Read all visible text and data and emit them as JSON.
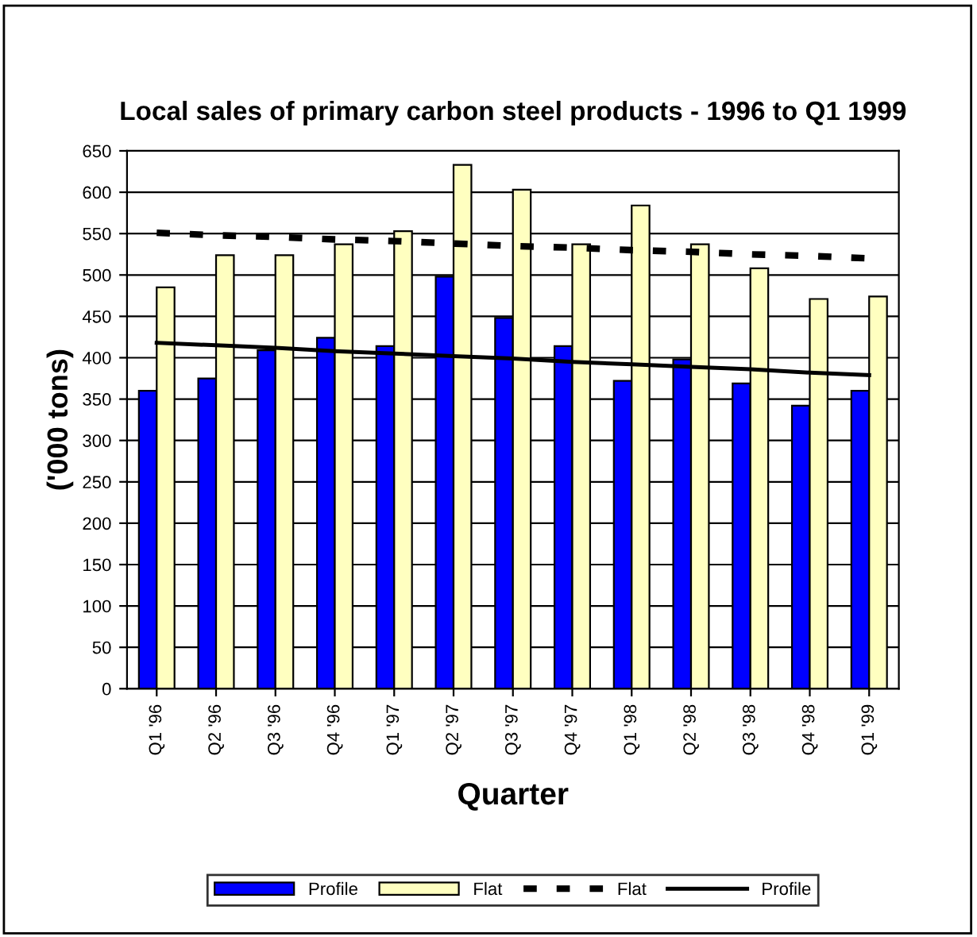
{
  "chart_data": {
    "type": "bar",
    "title": "Local sales of primary carbon steel products - 1996 to Q1 1999",
    "xlabel": "Quarter",
    "ylabel": "('000 tons)",
    "categories": [
      "Q1 '96",
      "Q2 '96",
      "Q3 '96",
      "Q4 '96",
      "Q1 '97",
      "Q2 '97",
      "Q3 '97",
      "Q4 '97",
      "Q1 '98",
      "Q2 '98",
      "Q3 '98",
      "Q4 '98",
      "Q1 '99"
    ],
    "series": [
      {
        "name": "Profile",
        "color": "#0000ff",
        "values": [
          360,
          375,
          409,
          424,
          414,
          498,
          448,
          414,
          372,
          398,
          369,
          342,
          360
        ]
      },
      {
        "name": "Flat",
        "color": "#ffffc0",
        "values": [
          485,
          524,
          524,
          537,
          553,
          633,
          603,
          537,
          584,
          537,
          508,
          471,
          474
        ]
      },
      {
        "name": "Flat",
        "type": "line",
        "color": "#000000",
        "line_style": "dashed",
        "values": [
          551,
          548,
          546,
          543,
          541,
          538,
          535,
          533,
          530,
          528,
          525,
          523,
          520
        ]
      },
      {
        "name": "Profile",
        "type": "line",
        "color": "#000000",
        "line_style": "solid",
        "values": [
          418,
          415,
          412,
          408,
          405,
          402,
          399,
          395,
          392,
          389,
          386,
          382,
          379
        ]
      }
    ],
    "ylim": [
      0,
      650
    ],
    "yticks": [
      0,
      50,
      100,
      150,
      200,
      250,
      300,
      350,
      400,
      450,
      500,
      550,
      600,
      650
    ],
    "grid": "y",
    "legend": "bottom"
  }
}
